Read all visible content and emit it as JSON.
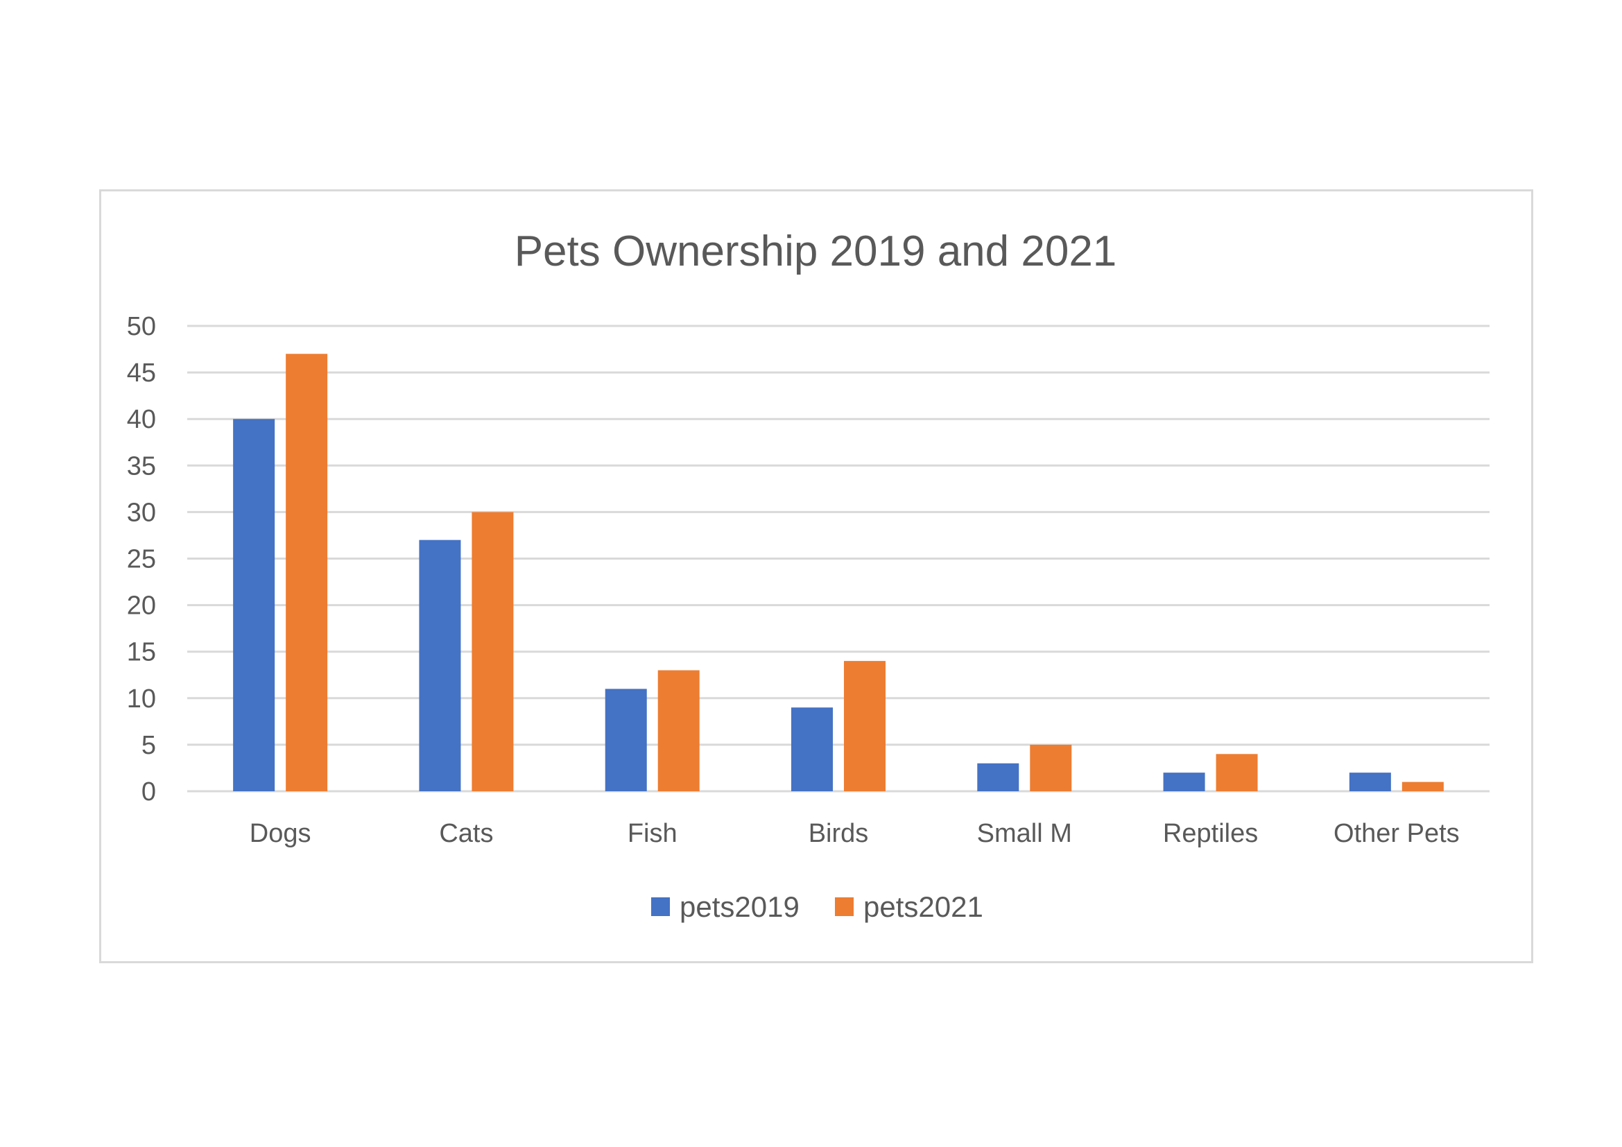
{
  "chart_data": {
    "type": "bar",
    "title": "Pets Ownership 2019 and 2021",
    "categories": [
      "Dogs",
      "Cats",
      "Fish",
      "Birds",
      "Small M",
      "Reptiles",
      "Other Pets"
    ],
    "series": [
      {
        "name": "pets2019",
        "color": "#4472C4",
        "values": [
          40,
          27,
          11,
          9,
          3,
          2,
          2
        ]
      },
      {
        "name": "pets2021",
        "color": "#ED7D31",
        "values": [
          47,
          30,
          13,
          14,
          5,
          4,
          1
        ]
      }
    ],
    "ylim": [
      0,
      50
    ],
    "yticks": [
      0,
      5,
      10,
      15,
      20,
      25,
      30,
      35,
      40,
      45,
      50
    ],
    "xlabel": "",
    "ylabel": "",
    "grid": true,
    "legend": "bottom"
  }
}
